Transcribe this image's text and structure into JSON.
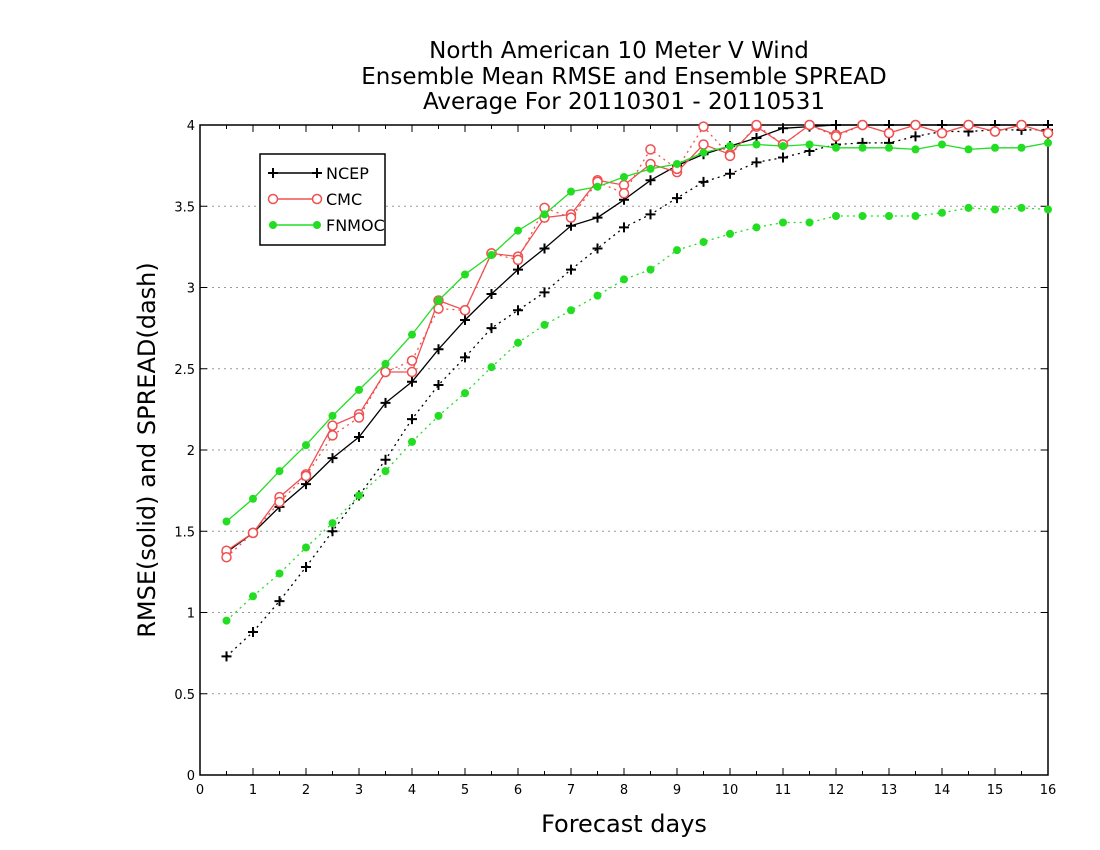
{
  "chart_data": {
    "type": "line",
    "title": [
      "North American 10 Meter V Wind",
      "Ensemble Mean RMSE and Ensemble SPREAD",
      "Average For 20110301 - 20110531"
    ],
    "xlabel": "Forecast days",
    "ylabel": "RMSE(solid) and SPREAD(dash)",
    "xlim": [
      0,
      16
    ],
    "ylim": [
      0,
      4
    ],
    "x_ticks": [
      "0",
      "1",
      "2",
      "3",
      "4",
      "5",
      "6",
      "7",
      "8",
      "9",
      "10",
      "11",
      "12",
      "13",
      "14",
      "15",
      "16"
    ],
    "y_ticks": [
      "0",
      "0.5",
      "1",
      "1.5",
      "2",
      "2.5",
      "3",
      "3.5",
      "4"
    ],
    "grid": "horizontal dotted",
    "legend_position": "top-left",
    "x": [
      0.5,
      1,
      1.5,
      2,
      2.5,
      3,
      3.5,
      4,
      4.5,
      5,
      5.5,
      6,
      6.5,
      7,
      7.5,
      8,
      8.5,
      9,
      9.5,
      10,
      10.5,
      11,
      11.5,
      12,
      12.5,
      13,
      13.5,
      14,
      14.5,
      15,
      15.5,
      16
    ],
    "series": [
      {
        "name": "NCEP",
        "metric": "RMSE",
        "style": "solid",
        "color": "#000000",
        "marker": "plus",
        "values": [
          1.37,
          1.49,
          1.65,
          1.79,
          1.95,
          2.08,
          2.29,
          2.42,
          2.62,
          2.8,
          2.96,
          3.11,
          3.24,
          3.38,
          3.43,
          3.54,
          3.66,
          3.75,
          3.82,
          3.87,
          3.92,
          3.98,
          3.99,
          4.0,
          4.0,
          4.0,
          4.0,
          4.0,
          4.0,
          4.0,
          4.0,
          4.0
        ]
      },
      {
        "name": "NCEP",
        "metric": "SPREAD",
        "style": "dash",
        "color": "#000000",
        "marker": "plus",
        "values": [
          0.73,
          0.88,
          1.07,
          1.28,
          1.5,
          1.72,
          1.94,
          2.19,
          2.4,
          2.57,
          2.75,
          2.86,
          2.97,
          3.11,
          3.24,
          3.37,
          3.45,
          3.55,
          3.65,
          3.7,
          3.77,
          3.8,
          3.84,
          3.88,
          3.89,
          3.89,
          3.93,
          3.96,
          3.96,
          3.97,
          3.97,
          3.97
        ]
      },
      {
        "name": "CMC",
        "metric": "RMSE",
        "style": "solid",
        "color": "#f05050",
        "marker": "circle",
        "values": [
          1.38,
          1.49,
          1.71,
          1.85,
          2.15,
          2.22,
          2.48,
          2.48,
          2.92,
          2.86,
          3.21,
          3.19,
          3.43,
          3.45,
          3.66,
          3.63,
          3.76,
          3.71,
          3.88,
          3.82,
          3.99,
          3.88,
          4.0,
          3.94,
          4.0,
          3.95,
          4.0,
          3.95,
          4.0,
          3.96,
          4.0,
          3.95
        ]
      },
      {
        "name": "CMC",
        "metric": "SPREAD",
        "style": "dash",
        "color": "#f05050",
        "marker": "circle",
        "values": [
          1.34,
          1.49,
          1.68,
          1.84,
          2.09,
          2.2,
          2.48,
          2.55,
          2.87,
          2.86,
          3.21,
          3.17,
          3.49,
          3.43,
          3.65,
          3.58,
          3.85,
          3.73,
          3.99,
          3.81,
          4.0,
          3.88,
          4.0,
          3.93,
          4.0,
          3.95,
          4.0,
          3.95,
          4.0,
          3.96,
          4.0,
          3.95
        ]
      },
      {
        "name": "FNMOC",
        "metric": "RMSE",
        "style": "solid",
        "color": "#22dd22",
        "marker": "dot",
        "values": [
          1.56,
          1.7,
          1.87,
          2.03,
          2.21,
          2.37,
          2.53,
          2.71,
          2.92,
          3.08,
          3.2,
          3.35,
          3.45,
          3.59,
          3.62,
          3.68,
          3.73,
          3.76,
          3.83,
          3.87,
          3.88,
          3.87,
          3.88,
          3.86,
          3.86,
          3.86,
          3.85,
          3.88,
          3.85,
          3.86,
          3.86,
          3.89
        ]
      },
      {
        "name": "FNMOC",
        "metric": "SPREAD",
        "style": "dash",
        "color": "#22dd22",
        "marker": "dot",
        "values": [
          0.95,
          1.1,
          1.24,
          1.4,
          1.55,
          1.72,
          1.87,
          2.05,
          2.21,
          2.35,
          2.51,
          2.66,
          2.77,
          2.86,
          2.95,
          3.05,
          3.11,
          3.23,
          3.28,
          3.33,
          3.37,
          3.4,
          3.4,
          3.44,
          3.44,
          3.44,
          3.44,
          3.46,
          3.49,
          3.48,
          3.49,
          3.48
        ]
      }
    ],
    "legend": [
      {
        "label": "NCEP",
        "color": "#000000",
        "marker": "plus"
      },
      {
        "label": "CMC",
        "color": "#f05050",
        "marker": "circle"
      },
      {
        "label": "FNMOC",
        "color": "#22dd22",
        "marker": "dot"
      }
    ]
  }
}
